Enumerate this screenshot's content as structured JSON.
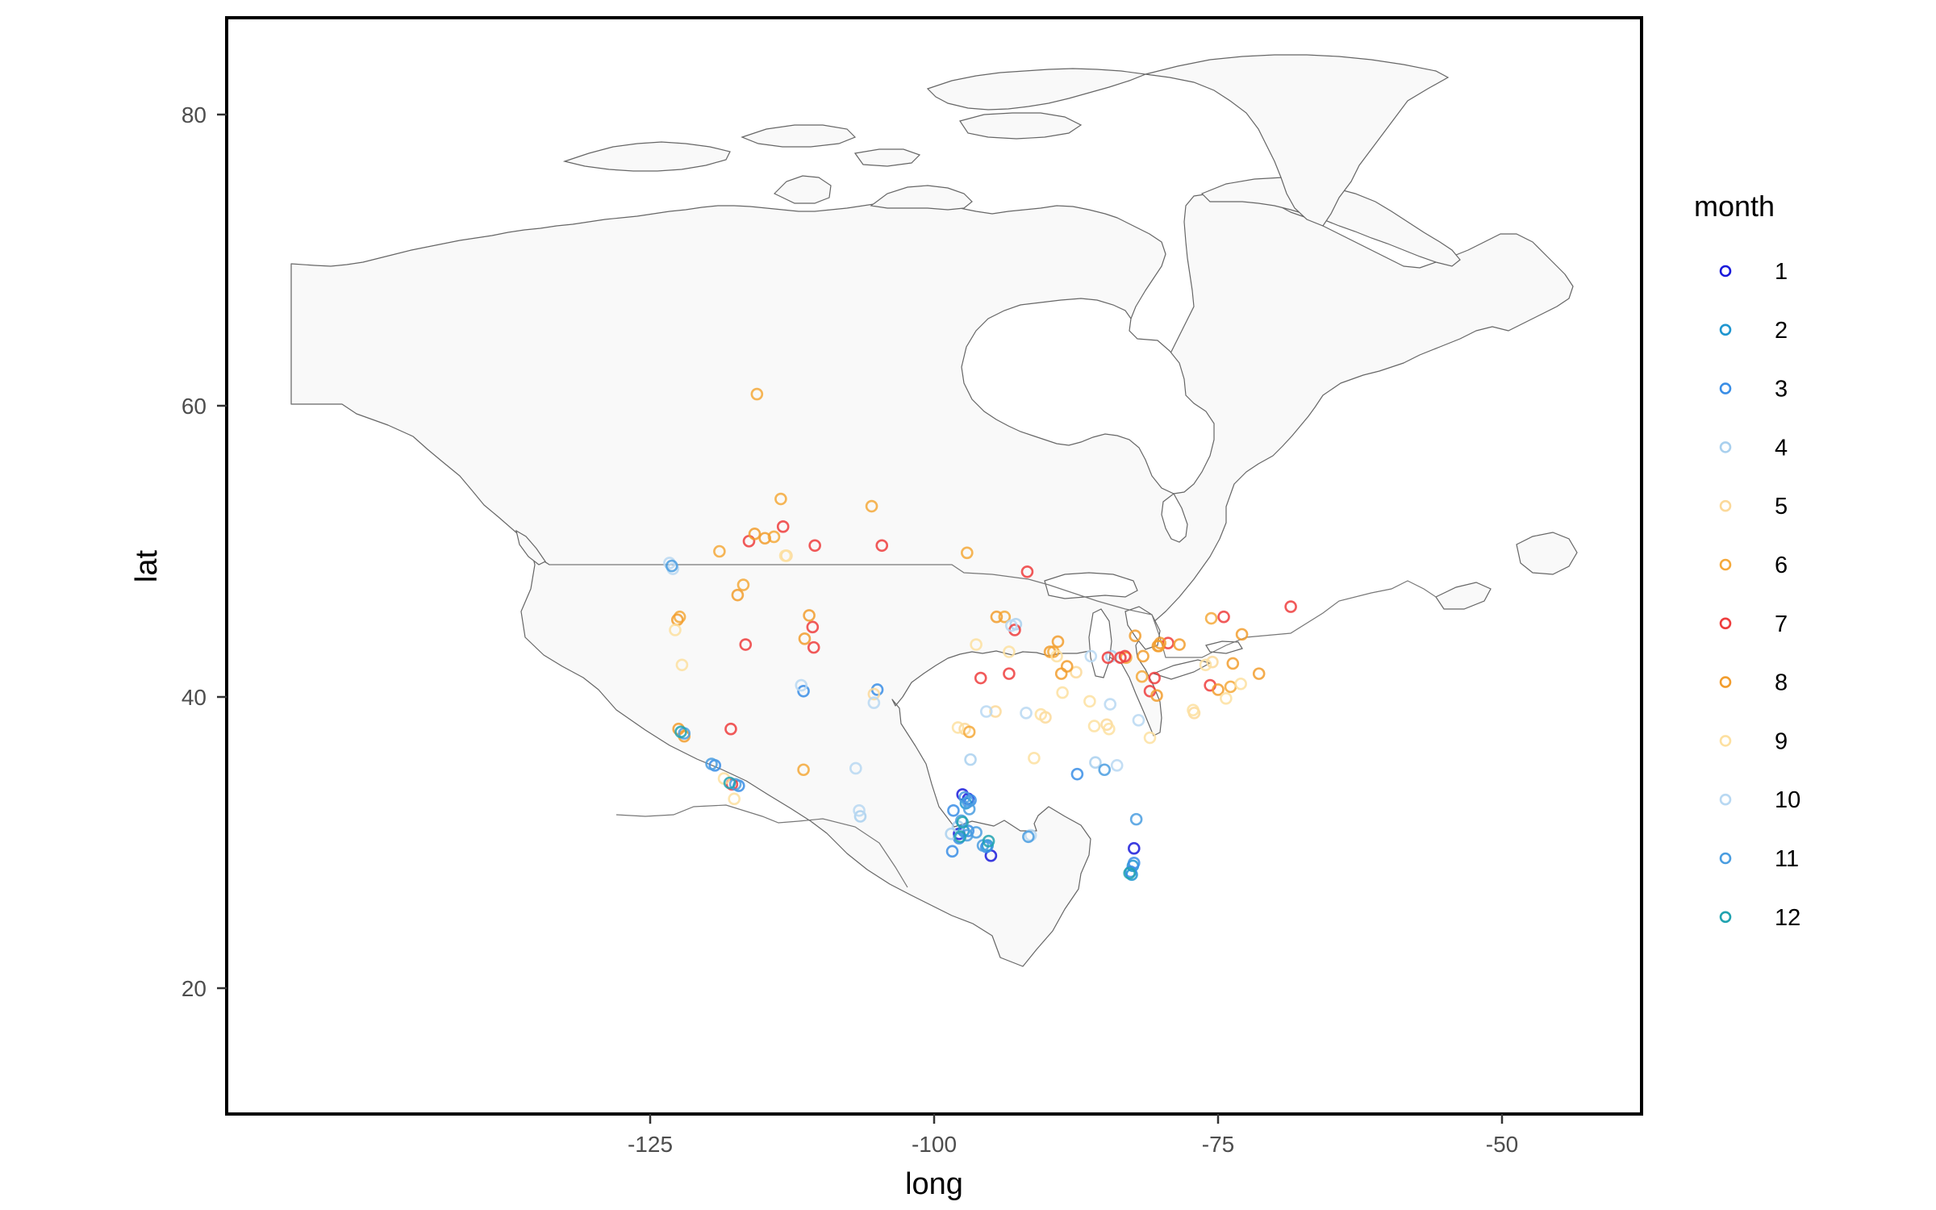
{
  "chart_data": {
    "type": "scatter",
    "xlabel": "long",
    "ylabel": "lat",
    "xlim": [
      -144,
      -49
    ],
    "ylim": [
      11.5,
      86
    ],
    "x_ticks": [
      -125,
      -100,
      -75,
      -50
    ],
    "x_tick_labels": [
      "-125",
      "-100",
      "-75",
      "-50"
    ],
    "y_ticks": [
      20,
      40,
      60,
      80
    ],
    "y_tick_labels": [
      "20",
      "40",
      "60",
      "80"
    ],
    "grid": false,
    "legend": {
      "title": "month",
      "position": "right",
      "entries": [
        {
          "label": "1",
          "color": "#1a1adb"
        },
        {
          "label": "2",
          "color": "#1f96d0"
        },
        {
          "label": "3",
          "color": "#3a8ee6"
        },
        {
          "label": "4",
          "color": "#a9d0ee"
        },
        {
          "label": "5",
          "color": "#fbd99a"
        },
        {
          "label": "6",
          "color": "#f5a93a"
        },
        {
          "label": "7",
          "color": "#ee3d3d"
        },
        {
          "label": "8",
          "color": "#f29d2e"
        },
        {
          "label": "9",
          "color": "#fde0a0"
        },
        {
          "label": "10",
          "color": "#b8d8f2"
        },
        {
          "label": "11",
          "color": "#4a9de0"
        },
        {
          "label": "12",
          "color": "#21a3b0"
        }
      ]
    },
    "series": [
      {
        "month": 1,
        "points": [
          [
            -97.5,
            33.3
          ],
          [
            -97.8,
            30.6
          ],
          [
            -95.0,
            29.1
          ],
          [
            -82.4,
            29.6
          ],
          [
            -97.0,
            33.0
          ]
        ]
      },
      {
        "month": 2,
        "points": [
          [
            -97.4,
            30.8
          ],
          [
            -82.6,
            27.8
          ],
          [
            -95.3,
            29.8
          ],
          [
            -97.2,
            32.7
          ],
          [
            -82.5,
            28.4
          ]
        ]
      },
      {
        "month": 3,
        "points": [
          [
            -97.8,
            30.3
          ],
          [
            -96.8,
            32.9
          ],
          [
            -82.7,
            28.0
          ],
          [
            -95.4,
            29.7
          ],
          [
            -98.4,
            29.4
          ],
          [
            -117.2,
            33.9
          ],
          [
            -111.5,
            40.4
          ],
          [
            -105.0,
            40.5
          ],
          [
            -82.4,
            28.6
          ],
          [
            -119.3,
            35.3
          ],
          [
            -97.0,
            30.8
          ],
          [
            -87.4,
            34.7
          ],
          [
            -98.3,
            32.2
          ]
        ]
      },
      {
        "month": 4,
        "points": [
          [
            -96.8,
            35.7
          ],
          [
            -98.5,
            30.6
          ],
          [
            -106.5,
            31.8
          ],
          [
            -84.4,
            42.8
          ],
          [
            -85.8,
            35.5
          ],
          [
            -92.8,
            45.0
          ],
          [
            -97.9,
            31.1
          ]
        ]
      },
      {
        "month": 5,
        "points": [
          [
            -94.6,
            39.0
          ],
          [
            -90.2,
            38.6
          ],
          [
            -84.8,
            38.1
          ],
          [
            -77.1,
            38.9
          ],
          [
            -75.5,
            42.4
          ],
          [
            -97.3,
            37.8
          ],
          [
            -87.5,
            41.7
          ],
          [
            -113.0,
            49.7
          ],
          [
            -105.3,
            40.2
          ]
        ]
      },
      {
        "month": 6,
        "points": [
          [
            -115.6,
            60.8
          ],
          [
            -113.5,
            53.6
          ],
          [
            -114.1,
            51.0
          ],
          [
            -118.9,
            50.0
          ],
          [
            -105.5,
            53.1
          ],
          [
            -97.1,
            49.9
          ],
          [
            -122.4,
            45.5
          ],
          [
            -116.8,
            47.7
          ],
          [
            -111.5,
            35.0
          ],
          [
            -89.5,
            43.1
          ],
          [
            -83.1,
            42.7
          ],
          [
            -80.2,
            43.5
          ],
          [
            -75.6,
            45.4
          ],
          [
            -73.9,
            40.7
          ],
          [
            -93.8,
            45.5
          ],
          [
            -96.9,
            37.6
          ],
          [
            -81.7,
            41.4
          ]
        ]
      },
      {
        "month": 7,
        "points": [
          [
            -113.3,
            51.7
          ],
          [
            -116.3,
            50.7
          ],
          [
            -110.5,
            50.4
          ],
          [
            -104.6,
            50.4
          ],
          [
            -116.6,
            43.6
          ],
          [
            -110.7,
            44.8
          ],
          [
            -110.6,
            43.4
          ],
          [
            -117.9,
            37.8
          ],
          [
            -117.8,
            34.0
          ],
          [
            -95.9,
            41.3
          ],
          [
            -93.4,
            41.6
          ],
          [
            -92.9,
            44.6
          ],
          [
            -91.8,
            48.6
          ],
          [
            -84.7,
            42.7
          ],
          [
            -83.6,
            42.7
          ],
          [
            -80.6,
            41.3
          ],
          [
            -79.4,
            43.7
          ],
          [
            -74.5,
            45.5
          ],
          [
            -75.7,
            40.8
          ],
          [
            -68.6,
            46.2
          ],
          [
            -81.0,
            40.4
          ],
          [
            -83.2,
            42.8
          ]
        ]
      },
      {
        "month": 8,
        "points": [
          [
            -114.9,
            50.9
          ],
          [
            -115.8,
            51.2
          ],
          [
            -111.0,
            45.6
          ],
          [
            -111.4,
            44.0
          ],
          [
            -122.6,
            45.3
          ],
          [
            -122.0,
            37.3
          ],
          [
            -117.3,
            47.0
          ],
          [
            -94.5,
            45.5
          ],
          [
            -89.8,
            43.1
          ],
          [
            -88.8,
            41.6
          ],
          [
            -88.3,
            42.1
          ],
          [
            -82.3,
            44.2
          ],
          [
            -80.1,
            43.7
          ],
          [
            -78.4,
            43.6
          ],
          [
            -75.0,
            40.5
          ],
          [
            -73.7,
            42.3
          ],
          [
            -72.9,
            44.3
          ],
          [
            -71.4,
            41.6
          ],
          [
            -80.4,
            40.1
          ],
          [
            -81.6,
            42.8
          ],
          [
            -89.1,
            43.8
          ],
          [
            -122.5,
            37.8
          ],
          [
            -80.3,
            43.5
          ]
        ]
      },
      {
        "month": 9,
        "points": [
          [
            -122.8,
            44.6
          ],
          [
            -122.2,
            42.2
          ],
          [
            -113.1,
            49.7
          ],
          [
            -96.3,
            43.6
          ],
          [
            -93.4,
            43.1
          ],
          [
            -89.2,
            42.8
          ],
          [
            -88.7,
            40.3
          ],
          [
            -85.9,
            38.0
          ],
          [
            -84.6,
            37.8
          ],
          [
            -81.0,
            37.2
          ],
          [
            -77.2,
            39.1
          ],
          [
            -76.1,
            42.2
          ],
          [
            -74.3,
            39.9
          ],
          [
            -73.0,
            40.9
          ],
          [
            -91.2,
            35.8
          ],
          [
            -97.9,
            37.9
          ],
          [
            -118.5,
            34.4
          ],
          [
            -117.6,
            33.0
          ],
          [
            -86.3,
            39.7
          ],
          [
            -90.6,
            38.8
          ]
        ]
      },
      {
        "month": 10,
        "points": [
          [
            -123.3,
            49.2
          ],
          [
            -123.0,
            48.8
          ],
          [
            -111.7,
            40.8
          ],
          [
            -106.9,
            35.1
          ],
          [
            -106.6,
            32.2
          ],
          [
            -105.3,
            39.6
          ],
          [
            -93.2,
            44.9
          ],
          [
            -91.9,
            38.9
          ],
          [
            -86.2,
            42.8
          ],
          [
            -84.5,
            39.5
          ],
          [
            -82.0,
            38.4
          ],
          [
            -95.4,
            39.0
          ],
          [
            -83.9,
            35.3
          ],
          [
            -91.5,
            30.5
          ]
        ]
      },
      {
        "month": 11,
        "points": [
          [
            -97.0,
            32.8
          ],
          [
            -97.1,
            30.5
          ],
          [
            -96.3,
            30.7
          ],
          [
            -95.7,
            29.8
          ],
          [
            -96.9,
            32.3
          ],
          [
            -122.0,
            37.5
          ],
          [
            -117.5,
            34.0
          ],
          [
            -119.6,
            35.4
          ],
          [
            -123.1,
            49.0
          ],
          [
            -85.0,
            35.0
          ],
          [
            -82.2,
            31.6
          ],
          [
            -91.7,
            30.4
          ],
          [
            -97.6,
            31.5
          ],
          [
            -97.3,
            33.1
          ]
        ]
      },
      {
        "month": 12,
        "points": [
          [
            -97.7,
            30.4
          ],
          [
            -97.5,
            31.4
          ],
          [
            -95.2,
            30.1
          ],
          [
            -82.8,
            27.9
          ],
          [
            -118.0,
            34.1
          ],
          [
            -122.3,
            37.6
          ]
        ]
      }
    ]
  }
}
